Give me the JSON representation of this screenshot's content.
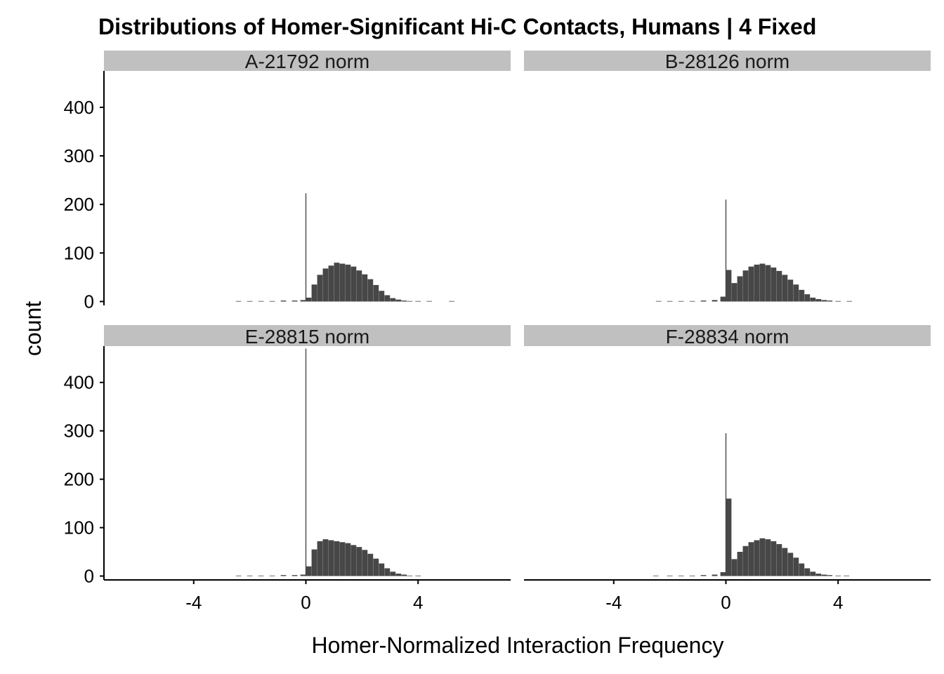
{
  "chart_data": {
    "type": "bar",
    "title": "Distributions of Homer-Significant Hi-C Contacts, Humans | 4 Fixed",
    "xlabel": "Homer-Normalized Interaction Frequency",
    "ylabel": "count",
    "xlim": [
      -7.2,
      7.3
    ],
    "ylim": [
      -8,
      475
    ],
    "x_ticks": [
      -4,
      0,
      4
    ],
    "x_tick_labels": [
      "-4",
      "0",
      "4"
    ],
    "y_ticks": [
      0,
      100,
      200,
      300,
      400
    ],
    "y_tick_labels": [
      "0",
      "100",
      "200",
      "300",
      "400"
    ],
    "bar_color": "#474747",
    "strip_color": "#c0c0c0",
    "grid": false,
    "facets": [
      {
        "label": "A-21792  norm",
        "x": [
          -2.4,
          -2.0,
          -1.6,
          -1.2,
          -0.8,
          -0.4,
          -0.1,
          0.0,
          0.1,
          0.3,
          0.5,
          0.7,
          0.9,
          1.1,
          1.3,
          1.5,
          1.7,
          1.9,
          2.1,
          2.3,
          2.5,
          2.7,
          2.9,
          3.1,
          3.3,
          3.5,
          3.7,
          4.0,
          4.4,
          5.2
        ],
        "counts": [
          1,
          1,
          1,
          1,
          2,
          2,
          3,
          223,
          8,
          35,
          55,
          68,
          74,
          80,
          78,
          76,
          72,
          64,
          56,
          46,
          34,
          22,
          13,
          7,
          4,
          2,
          1,
          1,
          1,
          1
        ]
      },
      {
        "label": "B-28126  norm",
        "x": [
          -2.4,
          -2.0,
          -1.6,
          -1.2,
          -0.8,
          -0.4,
          -0.1,
          0.0,
          0.1,
          0.3,
          0.5,
          0.7,
          0.9,
          1.1,
          1.3,
          1.5,
          1.7,
          1.9,
          2.1,
          2.3,
          2.5,
          2.7,
          2.9,
          3.1,
          3.3,
          3.5,
          3.7,
          4.0,
          4.4
        ],
        "counts": [
          1,
          1,
          1,
          1,
          2,
          3,
          10,
          210,
          65,
          38,
          52,
          64,
          72,
          76,
          78,
          75,
          70,
          63,
          55,
          45,
          35,
          24,
          15,
          8,
          5,
          3,
          2,
          1,
          1
        ]
      },
      {
        "label": "E-28815  norm",
        "x": [
          -2.4,
          -2.0,
          -1.6,
          -1.2,
          -0.8,
          -0.4,
          -0.1,
          0.0,
          0.1,
          0.3,
          0.5,
          0.7,
          0.9,
          1.1,
          1.3,
          1.5,
          1.7,
          1.9,
          2.1,
          2.3,
          2.5,
          2.7,
          2.9,
          3.1,
          3.3,
          3.5,
          3.7,
          4.0
        ],
        "counts": [
          1,
          1,
          1,
          1,
          2,
          2,
          3,
          470,
          20,
          55,
          72,
          76,
          74,
          72,
          70,
          68,
          64,
          60,
          54,
          46,
          36,
          26,
          16,
          9,
          5,
          3,
          1,
          1
        ]
      },
      {
        "label": "F-28834  norm",
        "x": [
          -2.5,
          -2.0,
          -1.6,
          -1.2,
          -0.8,
          -0.4,
          -0.1,
          0.0,
          0.1,
          0.3,
          0.5,
          0.7,
          0.9,
          1.1,
          1.3,
          1.5,
          1.7,
          1.9,
          2.1,
          2.3,
          2.5,
          2.7,
          2.9,
          3.1,
          3.3,
          3.5,
          3.7,
          4.0,
          4.3
        ],
        "counts": [
          1,
          1,
          1,
          1,
          2,
          3,
          8,
          295,
          160,
          35,
          50,
          62,
          70,
          74,
          78,
          76,
          72,
          66,
          58,
          48,
          38,
          26,
          16,
          9,
          5,
          3,
          2,
          1,
          1
        ]
      }
    ]
  }
}
